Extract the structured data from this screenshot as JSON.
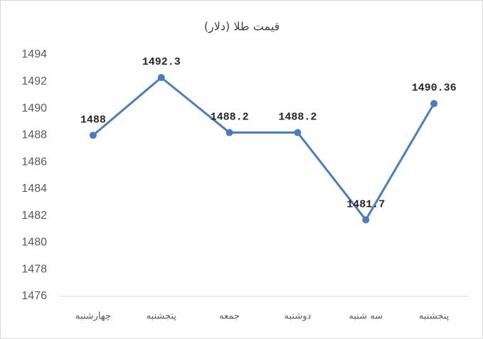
{
  "chart_data": {
    "type": "line",
    "title": "قیمت طلا (دلار)",
    "categories": [
      "چهارشنبه",
      "پنجشنبه",
      "جمعه",
      "دوشنبه",
      "سه شنبه",
      "پنجشنبه"
    ],
    "values": [
      1488,
      1492.3,
      1488.2,
      1488.2,
      1481.7,
      1490.36
    ],
    "color": "#4a7ebb",
    "ylim": [
      1476,
      1494
    ],
    "yticks": [
      1476,
      1478,
      1480,
      1482,
      1484,
      1486,
      1488,
      1490,
      1492,
      1494
    ],
    "grid": false
  }
}
